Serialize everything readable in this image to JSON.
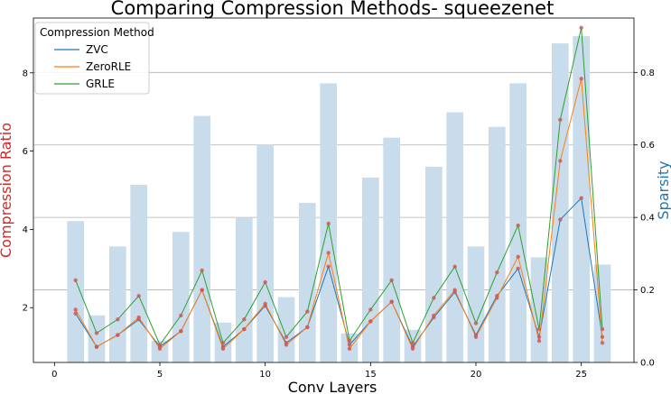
{
  "chart_data": {
    "type": "bar+line",
    "title": "Comparing Compression Methods- squeezenet",
    "xlabel": "Conv Layers",
    "ylabel_left": "Compression Ratio",
    "ylabel_right": "Sparsity",
    "xlim": [
      -1,
      27.5
    ],
    "ylim_left": [
      0.6,
      9.4
    ],
    "ylim_right": [
      0.0,
      0.95
    ],
    "x_ticks": [
      0,
      5,
      10,
      15,
      20,
      25
    ],
    "y_left_ticks": [
      2,
      4,
      6,
      8
    ],
    "y_right_ticks": [
      "0.0",
      "0.2",
      "0.4",
      "0.6",
      "0.8"
    ],
    "grid": "horizontal at right-axis ticks",
    "legend": {
      "title": "Compression Method",
      "placement": "top-left"
    },
    "layers": [
      1,
      2,
      3,
      4,
      5,
      6,
      7,
      8,
      9,
      10,
      11,
      12,
      13,
      14,
      15,
      16,
      17,
      18,
      19,
      20,
      21,
      22,
      23,
      24,
      25,
      26
    ],
    "sparsity": [
      0.39,
      0.13,
      0.32,
      0.49,
      0.06,
      0.36,
      0.68,
      0.11,
      0.4,
      0.6,
      0.18,
      0.44,
      0.77,
      0.08,
      0.51,
      0.62,
      0.09,
      0.54,
      0.69,
      0.32,
      0.65,
      0.77,
      0.29,
      0.88,
      0.9,
      0.27
    ],
    "series": [
      {
        "name": "ZVC",
        "color": "#1f77b4",
        "values": [
          1.85,
          1.0,
          1.3,
          1.7,
          1.0,
          1.4,
          2.45,
          1.0,
          1.45,
          2.05,
          1.1,
          1.5,
          3.05,
          1.05,
          1.65,
          2.15,
          1.0,
          1.75,
          2.4,
          1.3,
          2.3,
          3.0,
          1.25,
          4.25,
          4.8,
          1.25
        ]
      },
      {
        "name": "ZeroRLE",
        "color": "#ff7f0e",
        "values": [
          1.95,
          1.0,
          1.3,
          1.75,
          0.95,
          1.4,
          2.45,
          0.95,
          1.45,
          2.1,
          1.05,
          1.5,
          3.4,
          0.95,
          1.65,
          2.15,
          0.95,
          1.8,
          2.45,
          1.25,
          2.25,
          3.3,
          1.15,
          5.75,
          7.85,
          1.1
        ]
      },
      {
        "name": "GRLE",
        "color": "#2ca02c",
        "values": [
          2.7,
          1.35,
          1.7,
          2.3,
          1.05,
          1.8,
          2.95,
          1.1,
          1.7,
          2.65,
          1.25,
          1.9,
          4.15,
          1.15,
          1.95,
          2.7,
          1.1,
          2.25,
          3.05,
          1.6,
          2.9,
          4.1,
          1.45,
          6.8,
          9.15,
          1.45
        ]
      }
    ],
    "colors": {
      "bars": "#c9dcec",
      "left_axis_label": "#d62728",
      "right_axis_label": "#1f77b4",
      "markers": "#cd5c5c",
      "grid": "#b0b0b0"
    }
  }
}
